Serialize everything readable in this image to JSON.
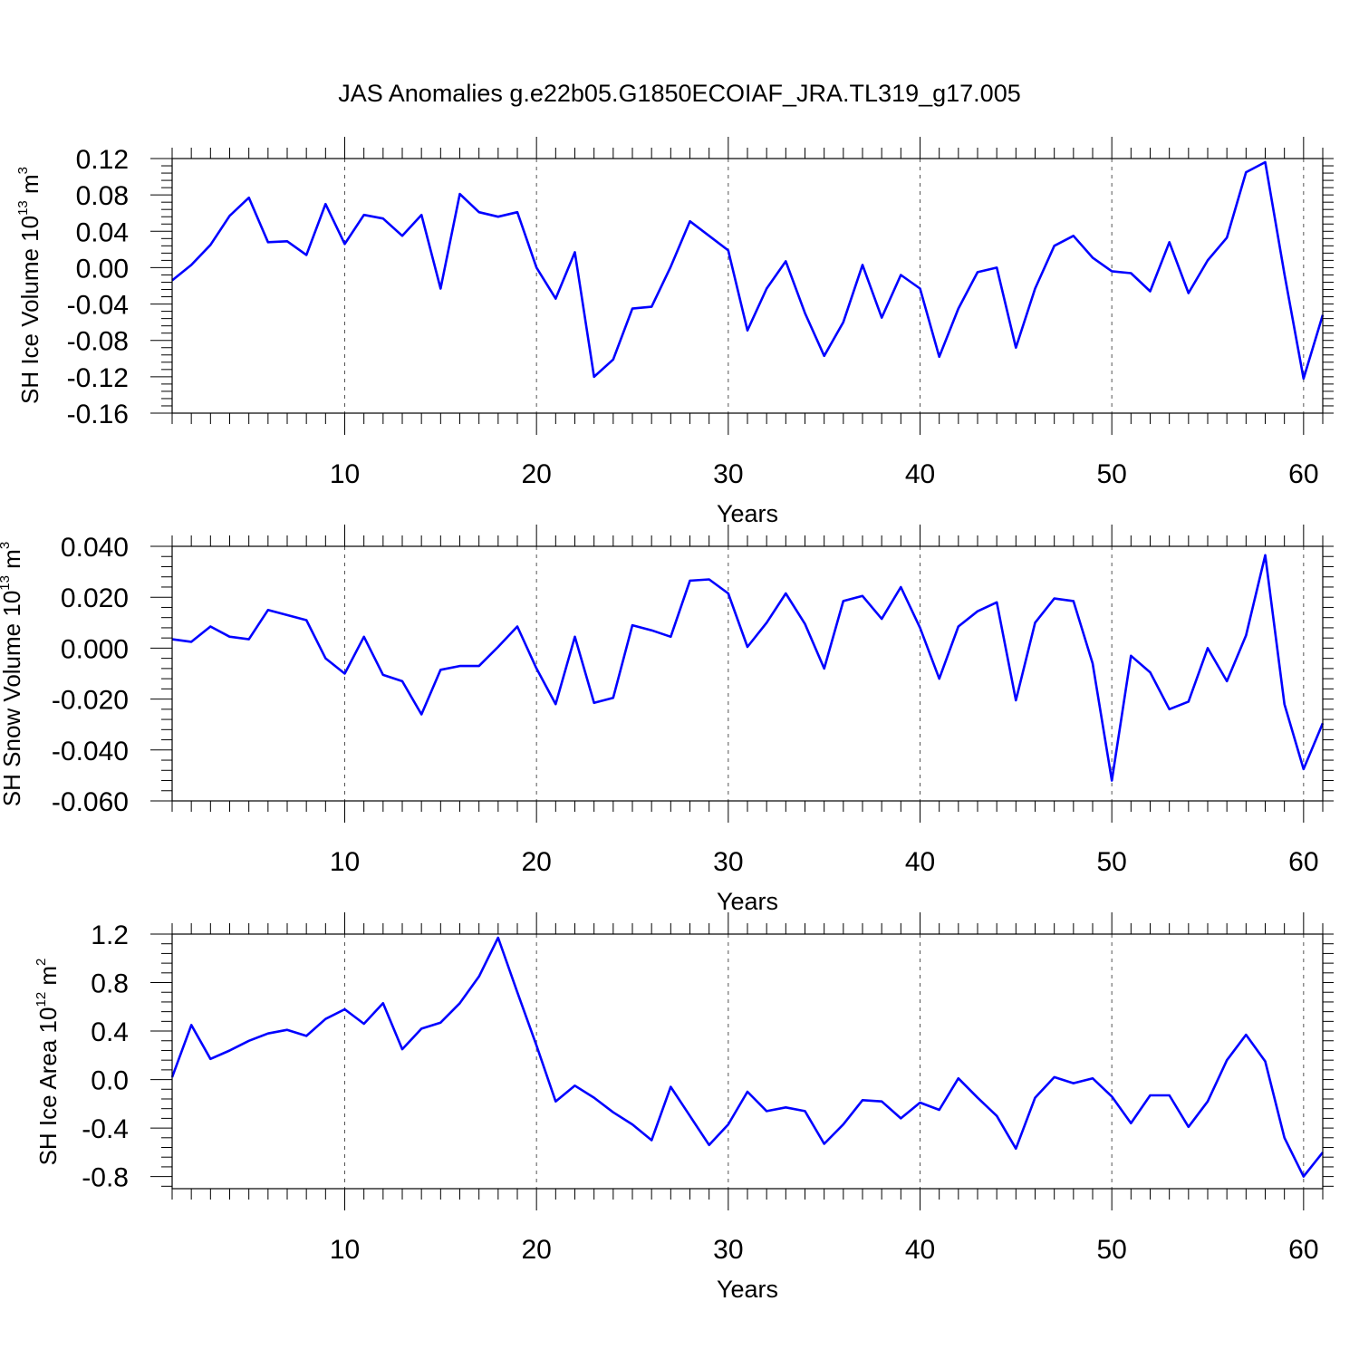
{
  "chart_data": [
    {
      "type": "line",
      "title": "JAS Anomalies g.e22b05.G1850ECOIAF_JRA.TL319_g17.005",
      "xlabel": "Years",
      "ylabel_main": "SH Ice Volume 10",
      "ylabel_exp": "13",
      "ylabel_unit": " m",
      "ylabel_unit_exp": "3",
      "xlim": [
        1,
        61
      ],
      "ylim": [
        -0.16,
        0.12
      ],
      "yticks": [
        -0.16,
        -0.12,
        -0.08,
        -0.04,
        0.0,
        0.04,
        0.08,
        0.12
      ],
      "ytick_labels": [
        "-0.16",
        "-0.12",
        "-0.08",
        "-0.04",
        "0.00",
        "0.04",
        "0.08",
        "0.12"
      ],
      "xticks": [
        10,
        20,
        30,
        40,
        50,
        60
      ],
      "xtick_labels": [
        "10",
        "20",
        "30",
        "40",
        "50",
        "60"
      ],
      "grid": "vertical dashed at major x ticks",
      "series": [
        {
          "name": "SH Ice Volume",
          "color": "#0000ff",
          "x": [
            1,
            2,
            3,
            4,
            5,
            6,
            7,
            8,
            9,
            10,
            11,
            12,
            13,
            14,
            15,
            16,
            17,
            18,
            19,
            20,
            21,
            22,
            23,
            24,
            25,
            26,
            27,
            28,
            29,
            30,
            31,
            32,
            33,
            34,
            35,
            36,
            37,
            38,
            39,
            40,
            41,
            42,
            43,
            44,
            45,
            46,
            47,
            48,
            49,
            50,
            51,
            52,
            53,
            54,
            55,
            56,
            57,
            58,
            59,
            60,
            61
          ],
          "values": [
            -0.014,
            0.003,
            0.025,
            0.057,
            0.077,
            0.028,
            0.029,
            0.014,
            0.07,
            0.026,
            0.058,
            0.054,
            0.035,
            0.058,
            -0.023,
            0.081,
            0.061,
            0.056,
            0.061,
            0.0,
            -0.034,
            0.017,
            -0.12,
            -0.101,
            -0.045,
            -0.043,
            0.001,
            0.051,
            0.035,
            0.019,
            -0.069,
            -0.023,
            0.007,
            -0.05,
            -0.097,
            -0.06,
            0.003,
            -0.055,
            -0.008,
            -0.023,
            -0.098,
            -0.045,
            -0.005,
            0.0,
            -0.088,
            -0.023,
            0.024,
            0.035,
            0.011,
            -0.004,
            -0.006,
            -0.026,
            0.028,
            -0.028,
            0.008,
            0.033,
            0.105,
            0.116,
            -0.007,
            -0.122,
            -0.052
          ]
        }
      ]
    },
    {
      "type": "line",
      "xlabel": "Years",
      "ylabel_main": "SH Snow Volume 10",
      "ylabel_exp": "13",
      "ylabel_unit": " m",
      "ylabel_unit_exp": "3",
      "xlim": [
        1,
        61
      ],
      "ylim": [
        -0.06,
        0.04
      ],
      "yticks": [
        -0.06,
        -0.04,
        -0.02,
        0.0,
        0.02,
        0.04
      ],
      "ytick_labels": [
        "-0.060",
        "-0.040",
        "-0.020",
        "0.000",
        "0.020",
        "0.040"
      ],
      "xticks": [
        10,
        20,
        30,
        40,
        50,
        60
      ],
      "xtick_labels": [
        "10",
        "20",
        "30",
        "40",
        "50",
        "60"
      ],
      "grid": "vertical dashed at major x ticks",
      "series": [
        {
          "name": "SH Snow Volume",
          "color": "#0000ff",
          "x": [
            1,
            2,
            3,
            4,
            5,
            6,
            7,
            8,
            9,
            10,
            11,
            12,
            13,
            14,
            15,
            16,
            17,
            18,
            19,
            20,
            21,
            22,
            23,
            24,
            25,
            26,
            27,
            28,
            29,
            30,
            31,
            32,
            33,
            34,
            35,
            36,
            37,
            38,
            39,
            40,
            41,
            42,
            43,
            44,
            45,
            46,
            47,
            48,
            49,
            50,
            51,
            52,
            53,
            54,
            55,
            56,
            57,
            58,
            59,
            60,
            61
          ],
          "values": [
            0.0035,
            0.0025,
            0.0085,
            0.0045,
            0.0035,
            0.015,
            0.013,
            0.011,
            -0.004,
            -0.01,
            0.0045,
            -0.0105,
            -0.013,
            -0.026,
            -0.0085,
            -0.007,
            -0.007,
            0.0005,
            0.0085,
            -0.008,
            -0.022,
            0.0045,
            -0.0215,
            -0.0195,
            0.009,
            0.007,
            0.0045,
            0.0265,
            0.027,
            0.0215,
            0.0005,
            0.01,
            0.0215,
            0.0095,
            -0.008,
            0.0185,
            0.0205,
            0.0115,
            0.024,
            0.008,
            -0.012,
            0.0085,
            0.0145,
            0.018,
            -0.0205,
            0.01,
            0.0195,
            0.0185,
            -0.006,
            -0.052,
            -0.003,
            -0.0095,
            -0.024,
            -0.021,
            0.0,
            -0.013,
            0.005,
            0.0365,
            -0.022,
            -0.0475,
            -0.0295
          ]
        }
      ]
    },
    {
      "type": "line",
      "xlabel": "Years",
      "ylabel_main": "SH Ice Area 10",
      "ylabel_exp": "12",
      "ylabel_unit": " m",
      "ylabel_unit_exp": "2",
      "xlim": [
        1,
        61
      ],
      "ylim": [
        -0.9,
        1.2
      ],
      "yticks": [
        -0.8,
        -0.4,
        0.0,
        0.4,
        0.8,
        1.2
      ],
      "ytick_labels": [
        "-0.8",
        "-0.4",
        "0.0",
        "0.4",
        "0.8",
        "1.2"
      ],
      "xticks": [
        10,
        20,
        30,
        40,
        50,
        60
      ],
      "xtick_labels": [
        "10",
        "20",
        "30",
        "40",
        "50",
        "60"
      ],
      "grid": "vertical dashed at major x ticks",
      "series": [
        {
          "name": "SH Ice Area",
          "color": "#0000ff",
          "x": [
            1,
            2,
            3,
            4,
            5,
            6,
            7,
            8,
            9,
            10,
            11,
            12,
            13,
            14,
            15,
            16,
            17,
            18,
            19,
            20,
            21,
            22,
            23,
            24,
            25,
            26,
            27,
            28,
            29,
            30,
            31,
            32,
            33,
            34,
            35,
            36,
            37,
            38,
            39,
            40,
            41,
            42,
            43,
            44,
            45,
            46,
            47,
            48,
            49,
            50,
            51,
            52,
            53,
            54,
            55,
            56,
            57,
            58,
            59,
            60,
            61
          ],
          "values": [
            0.02,
            0.45,
            0.17,
            0.24,
            0.32,
            0.38,
            0.41,
            0.36,
            0.5,
            0.58,
            0.46,
            0.63,
            0.25,
            0.42,
            0.47,
            0.63,
            0.85,
            1.17,
            0.72,
            0.28,
            -0.18,
            -0.05,
            -0.15,
            -0.27,
            -0.37,
            -0.5,
            -0.06,
            -0.3,
            -0.54,
            -0.37,
            -0.1,
            -0.26,
            -0.23,
            -0.26,
            -0.53,
            -0.37,
            -0.17,
            -0.18,
            -0.32,
            -0.19,
            -0.25,
            0.01,
            -0.15,
            -0.3,
            -0.57,
            -0.15,
            0.02,
            -0.03,
            0.01,
            -0.14,
            -0.36,
            -0.13,
            -0.13,
            -0.39,
            -0.18,
            0.16,
            0.37,
            0.15,
            -0.48,
            -0.8,
            -0.6
          ]
        }
      ]
    }
  ]
}
